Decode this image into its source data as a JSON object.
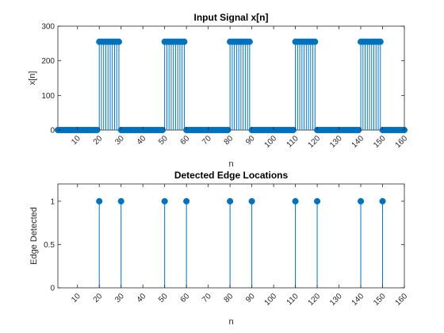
{
  "chart_data": [
    {
      "type": "stem",
      "title": "Input Signal x[n]",
      "xlabel": "n",
      "ylabel": "x[n]",
      "xlim": [
        1,
        160
      ],
      "ylim": [
        0,
        300
      ],
      "xticks": [
        10,
        20,
        30,
        40,
        50,
        60,
        70,
        80,
        90,
        100,
        110,
        120,
        130,
        140,
        150,
        160
      ],
      "yticks": [
        0,
        100,
        200,
        300
      ],
      "series": [
        {
          "color": "#0072BD",
          "segments": [
            {
              "from": 1,
              "to": 19,
              "value": 0
            },
            {
              "from": 20,
              "to": 29,
              "value": 255
            },
            {
              "from": 30,
              "to": 49,
              "value": 0
            },
            {
              "from": 50,
              "to": 59,
              "value": 255
            },
            {
              "from": 60,
              "to": 79,
              "value": 0
            },
            {
              "from": 80,
              "to": 89,
              "value": 255
            },
            {
              "from": 90,
              "to": 109,
              "value": 0
            },
            {
              "from": 110,
              "to": 119,
              "value": 255
            },
            {
              "from": 120,
              "to": 139,
              "value": 0
            },
            {
              "from": 140,
              "to": 149,
              "value": 255
            },
            {
              "from": 150,
              "to": 160,
              "value": 0
            }
          ]
        }
      ],
      "grid": false,
      "box": true
    },
    {
      "type": "stem",
      "title": "Detected Edge Locations",
      "xlabel": "n",
      "ylabel": "Edge Detected",
      "xlim": [
        1,
        160
      ],
      "ylim": [
        0,
        1.2
      ],
      "xticks": [
        10,
        20,
        30,
        40,
        50,
        60,
        70,
        80,
        90,
        100,
        110,
        120,
        130,
        140,
        150,
        160
      ],
      "yticks": [
        0,
        0.5,
        1
      ],
      "series": [
        {
          "color": "#0072BD",
          "x": [
            20,
            30,
            50,
            60,
            80,
            90,
            110,
            120,
            140,
            150
          ],
          "values": [
            1,
            1,
            1,
            1,
            1,
            1,
            1,
            1,
            1,
            1
          ]
        }
      ],
      "grid": false,
      "box": true
    }
  ]
}
